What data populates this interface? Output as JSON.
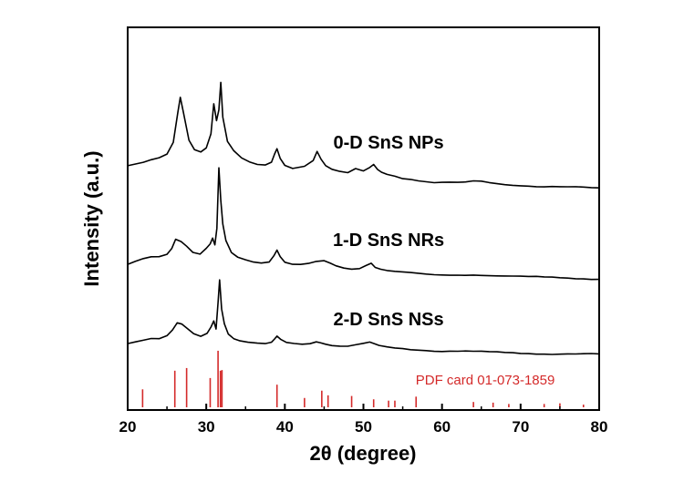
{
  "chart_data": {
    "type": "line",
    "xlabel": "2θ (degree)",
    "ylabel": "Intensity (a.u.)",
    "xlim": [
      20,
      80
    ],
    "x_ticks": [
      "20",
      "30",
      "40",
      "50",
      "60",
      "70",
      "80"
    ],
    "y_ticks": false,
    "grid": false,
    "series": [
      {
        "name": "0-D SnS NPs",
        "color": "#000000",
        "x": [
          20,
          21,
          22,
          23,
          24,
          25,
          25.8,
          26.4,
          26.7,
          27.1,
          27.8,
          28.5,
          29.3,
          30.0,
          30.6,
          30.95,
          31.3,
          31.6,
          31.85,
          32.1,
          32.7,
          33.5,
          34.5,
          35.5,
          36.5,
          37.5,
          38.3,
          38.7,
          39.0,
          39.4,
          40.0,
          41.0,
          42.5,
          43.6,
          44.1,
          44.6,
          45.2,
          46.0,
          47.0,
          48.0,
          49.0,
          50.0,
          50.8,
          51.3,
          51.8,
          52.3,
          53.0,
          54.0,
          55.0,
          56.0,
          57.0,
          58.0,
          59.0,
          60.0,
          61.0,
          62.0,
          63.0,
          64.0,
          65.0,
          66.0,
          67.0,
          68.0,
          69.0,
          70.0,
          71.0,
          72.0,
          73.0,
          74.0,
          75.0,
          76.0,
          77.0,
          78.0,
          79.0,
          80.0
        ],
        "values": [
          95,
          100,
          105,
          112,
          117,
          126,
          155,
          232,
          268,
          228,
          158,
          134,
          128,
          139,
          175,
          252,
          210,
          238,
          308,
          220,
          158,
          134,
          115,
          104,
          97,
          95,
          102,
          123,
          137,
          113,
          96,
          89,
          95,
          110,
          133,
          113,
          96,
          86,
          80,
          76,
          86,
          80,
          89,
          97,
          85,
          79,
          74,
          70,
          64,
          62,
          58,
          55,
          52,
          52,
          52,
          51,
          52,
          55,
          55,
          52,
          50,
          48,
          47,
          46,
          45,
          43,
          42,
          42,
          41,
          40,
          40,
          39,
          38,
          38
        ]
      },
      {
        "name": "1-D SnS NRs",
        "color": "#000000",
        "x": [
          20,
          21,
          22,
          23,
          24,
          25,
          25.6,
          26.1,
          26.8,
          27.5,
          28.3,
          29.2,
          30.0,
          30.5,
          30.8,
          31.1,
          31.35,
          31.6,
          31.85,
          32.1,
          32.5,
          33.2,
          34.0,
          35.0,
          36.0,
          37.0,
          38.0,
          38.6,
          39.0,
          39.4,
          40.0,
          41.0,
          42.0,
          43.0,
          44.0,
          45.0,
          45.8,
          46.5,
          47.5,
          48.5,
          49.5,
          50.3,
          51.0,
          51.5,
          52.2,
          53.0,
          54.0,
          55.0,
          56.0,
          57.0,
          58.0,
          59.0,
          60.0,
          61.0,
          62.0,
          63.0,
          64.0,
          65.0,
          66.0,
          67.0,
          68.0,
          69.0,
          70.0,
          71.0,
          72.0,
          73.0,
          74.0,
          75.0,
          76.0,
          77.0,
          78.0,
          79.0,
          80.0
        ],
        "values": [
          65,
          72,
          78,
          82,
          82,
          88,
          103,
          127,
          122,
          111,
          96,
          92,
          107,
          118,
          132,
          114,
          155,
          308,
          225,
          165,
          123,
          93,
          82,
          76,
          71,
          69,
          72,
          88,
          102,
          85,
          70,
          64,
          63,
          65,
          70,
          72,
          66,
          60,
          55,
          53,
          55,
          63,
          69,
          58,
          53,
          49,
          46,
          44,
          42,
          40,
          38,
          37,
          37,
          37,
          38,
          38,
          39,
          38,
          37,
          36,
          35,
          34,
          33,
          32,
          32,
          31,
          31,
          30,
          30,
          29,
          29,
          28,
          28
        ]
      },
      {
        "name": "2-D SnS NSs",
        "color": "#000000",
        "x": [
          20,
          21,
          22,
          23,
          24,
          25,
          25.7,
          26.3,
          26.9,
          27.6,
          28.4,
          29.3,
          30.1,
          30.6,
          30.95,
          31.25,
          31.5,
          31.7,
          31.95,
          32.3,
          32.8,
          33.5,
          34.3,
          35.3,
          36.5,
          37.5,
          38.3,
          38.7,
          39.0,
          39.5,
          40.2,
          41.2,
          42.2,
          43.2,
          44.0,
          44.5,
          45.2,
          46.0,
          47.0,
          48.0,
          49.0,
          50.0,
          50.8,
          51.4,
          52.0,
          53.0,
          54.0,
          55.0,
          56.0,
          57.0,
          58.0,
          59.0,
          60.0,
          61.0,
          62.0,
          63.0,
          64.0,
          65.0,
          66.0,
          67.0,
          68.0,
          69.0,
          70.0,
          71.0,
          72.0,
          73.0,
          74.0,
          75.0,
          76.0,
          77.0,
          78.0,
          79.0,
          80.0
        ],
        "values": [
          45,
          50,
          55,
          60,
          60,
          68,
          82,
          100,
          96,
          84,
          70,
          63,
          70,
          86,
          102,
          82,
          150,
          208,
          135,
          98,
          72,
          60,
          54,
          50,
          47,
          45,
          48,
          56,
          63,
          55,
          48,
          46,
          45,
          47,
          52,
          50,
          46,
          42,
          40,
          39,
          42,
          45,
          48,
          44,
          40,
          37,
          35,
          34,
          32,
          31,
          30,
          28,
          27,
          27,
          26,
          26,
          25,
          25,
          24,
          24,
          23,
          23,
          22,
          22,
          21,
          21,
          20,
          20,
          20,
          19,
          19,
          19,
          18
        ]
      },
      {
        "name": "PDF card 01-073-1859",
        "color": "#d42a2a",
        "type": "stick",
        "x": [
          21.9,
          26.0,
          27.5,
          30.5,
          31.5,
          31.8,
          32.0,
          39.0,
          42.5,
          44.7,
          45.5,
          48.5,
          51.3,
          53.2,
          54.0,
          56.7,
          64.0,
          66.5,
          68.5,
          73.0,
          75.0,
          78.0
        ],
        "values": [
          27,
          55,
          59,
          44,
          85,
          55,
          56,
          34,
          14,
          25,
          18,
          17,
          12,
          10,
          10,
          16,
          8,
          7,
          5,
          5,
          6,
          4
        ]
      }
    ],
    "annotations": [
      {
        "text": "0-D SnS NPs",
        "x": 53.2,
        "series": 0
      },
      {
        "text": "1-D SnS NRs",
        "x": 53.2,
        "series": 1
      },
      {
        "text": "2-D SnS NSs",
        "x": 53.2,
        "series": 2
      },
      {
        "text": "PDF card 01-073-1859",
        "x": 65.5,
        "series": 3
      }
    ]
  }
}
